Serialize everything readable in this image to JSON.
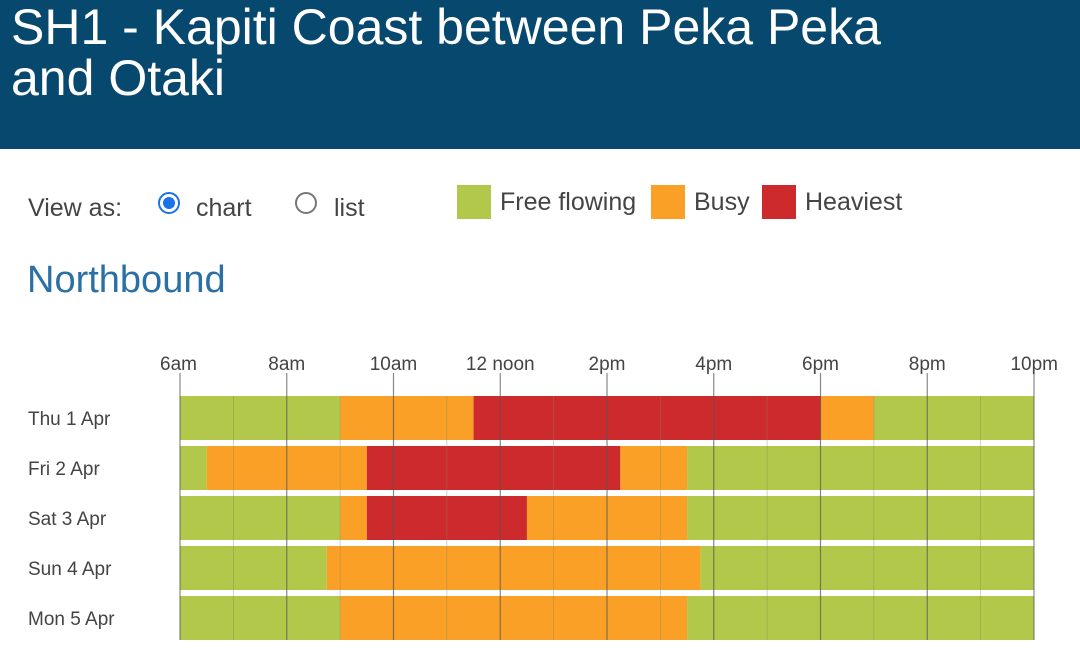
{
  "header": {
    "title": "SH1 - Kapiti Coast between Peka Peka and Otaki"
  },
  "view_as": {
    "label": "View as:",
    "options": [
      {
        "label": "chart",
        "selected": true
      },
      {
        "label": "list",
        "selected": false
      }
    ]
  },
  "legend": [
    {
      "label": "Free flowing",
      "color": "#b1c84a"
    },
    {
      "label": "Busy",
      "color": "#fba027"
    },
    {
      "label": "Heaviest",
      "color": "#cd2a2e"
    }
  ],
  "section": {
    "title": "Northbound"
  },
  "chart_data": {
    "type": "timeline-heatmap",
    "title": "Northbound",
    "x_unit": "hour of day",
    "x_range": [
      6,
      22
    ],
    "ticks": [
      {
        "hour": 6,
        "label": "6am"
      },
      {
        "hour": 8,
        "label": "8am"
      },
      {
        "hour": 10,
        "label": "10am"
      },
      {
        "hour": 12,
        "label": "12 noon"
      },
      {
        "hour": 14,
        "label": "2pm"
      },
      {
        "hour": 16,
        "label": "4pm"
      },
      {
        "hour": 18,
        "label": "6pm"
      },
      {
        "hour": 20,
        "label": "8pm"
      },
      {
        "hour": 22,
        "label": "10pm"
      }
    ],
    "level_colors": {
      "free": "#b1c84a",
      "busy": "#fba027",
      "heaviest": "#cd2a2e"
    },
    "rows": [
      {
        "label": "Thu 1 Apr",
        "segments": [
          {
            "start": 6,
            "end": 9,
            "level": "free"
          },
          {
            "start": 9,
            "end": 11.5,
            "level": "busy"
          },
          {
            "start": 11.5,
            "end": 18,
            "level": "heaviest"
          },
          {
            "start": 18,
            "end": 19,
            "level": "busy"
          },
          {
            "start": 19,
            "end": 22,
            "level": "free"
          }
        ]
      },
      {
        "label": "Fri 2 Apr",
        "segments": [
          {
            "start": 6,
            "end": 6.5,
            "level": "free"
          },
          {
            "start": 6.5,
            "end": 9.5,
            "level": "busy"
          },
          {
            "start": 9.5,
            "end": 14.25,
            "level": "heaviest"
          },
          {
            "start": 14.25,
            "end": 15.5,
            "level": "busy"
          },
          {
            "start": 15.5,
            "end": 22,
            "level": "free"
          }
        ]
      },
      {
        "label": "Sat 3 Apr",
        "segments": [
          {
            "start": 6,
            "end": 9,
            "level": "free"
          },
          {
            "start": 9,
            "end": 9.5,
            "level": "busy"
          },
          {
            "start": 9.5,
            "end": 12.5,
            "level": "heaviest"
          },
          {
            "start": 12.5,
            "end": 15.5,
            "level": "busy"
          },
          {
            "start": 15.5,
            "end": 22,
            "level": "free"
          }
        ]
      },
      {
        "label": "Sun 4 Apr",
        "segments": [
          {
            "start": 6,
            "end": 8.75,
            "level": "free"
          },
          {
            "start": 8.75,
            "end": 15.75,
            "level": "busy"
          },
          {
            "start": 15.75,
            "end": 22,
            "level": "free"
          }
        ]
      },
      {
        "label": "Mon 5 Apr",
        "segments": [
          {
            "start": 6,
            "end": 9,
            "level": "free"
          },
          {
            "start": 9,
            "end": 15.5,
            "level": "busy"
          },
          {
            "start": 15.5,
            "end": 22,
            "level": "free"
          }
        ]
      }
    ]
  }
}
